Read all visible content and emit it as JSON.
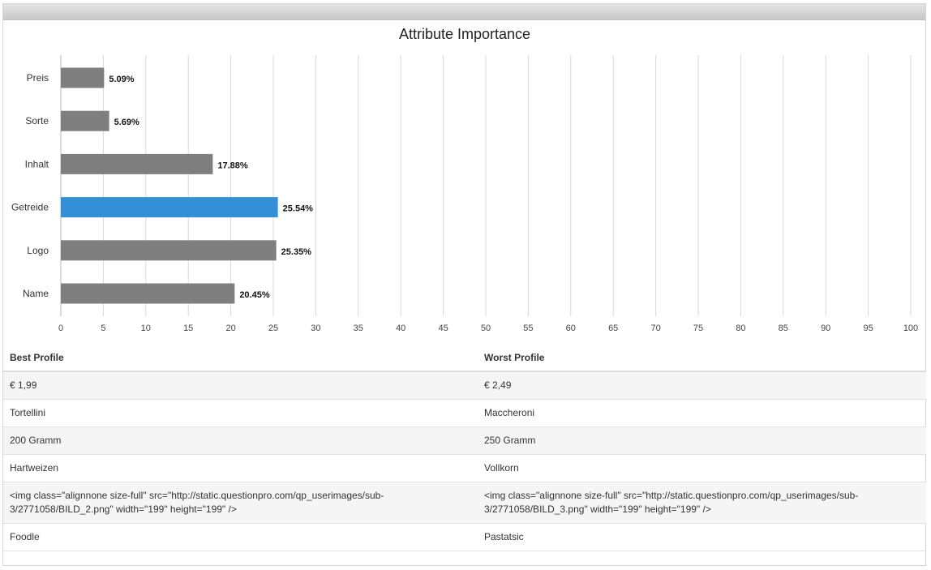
{
  "chart_data": {
    "type": "bar",
    "orientation": "horizontal",
    "title": "Attribute Importance",
    "categories": [
      "Preis",
      "Sorte",
      "Inhalt",
      "Getreide",
      "Logo",
      "Name"
    ],
    "values": [
      5.09,
      5.69,
      17.88,
      25.54,
      25.35,
      20.45
    ],
    "value_labels": [
      "5.09%",
      "5.69%",
      "17.88%",
      "25.54%",
      "25.35%",
      "20.45%"
    ],
    "highlight_index": 3,
    "xlim": [
      0,
      100
    ],
    "xticks": [
      0,
      5,
      10,
      15,
      20,
      25,
      30,
      35,
      40,
      45,
      50,
      55,
      60,
      65,
      70,
      75,
      80,
      85,
      90,
      95,
      100
    ],
    "grid": true,
    "colors": {
      "bar": "#7f7f7f",
      "highlight": "#3390d7",
      "grid": "#d9d9d9"
    }
  },
  "table": {
    "headers": [
      "Best Profile",
      "Worst Profile"
    ],
    "rows": [
      [
        "€ 1,99",
        "€ 2,49"
      ],
      [
        "Tortellini",
        "Maccheroni"
      ],
      [
        "200 Gramm",
        "250 Gramm"
      ],
      [
        "Hartweizen",
        "Vollkorn"
      ],
      [
        "<img class=\"alignnone size-full\" src=\"http://static.questionpro.com/qp_userimages/sub-3/2771058/BILD_2.png\" width=\"199\" height=\"199\" />",
        "<img class=\"alignnone size-full\" src=\"http://static.questionpro.com/qp_userimages/sub-3/2771058/BILD_3.png\" width=\"199\" height=\"199\" />"
      ],
      [
        "Foodle",
        "Pastatsic"
      ]
    ]
  }
}
